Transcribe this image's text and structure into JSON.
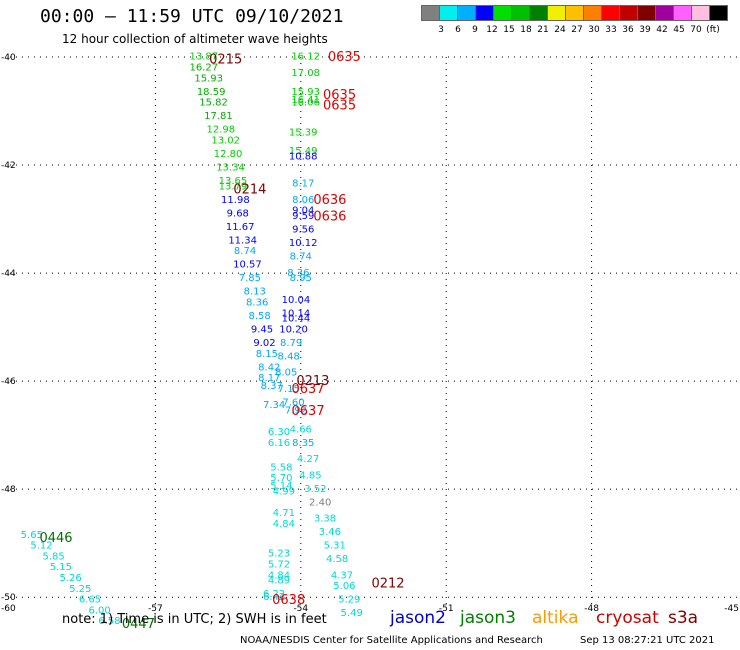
{
  "header": {
    "title": "00:00 — 11:59 UTC 09/10/2021",
    "subtitle": "12 hour collection of altimeter wave heights"
  },
  "colorbar": {
    "colors": [
      "#808080",
      "#00f0f0",
      "#00b0ff",
      "#0000ff",
      "#00e000",
      "#00c000",
      "#008000",
      "#f0f000",
      "#ffc000",
      "#ff8000",
      "#ff0000",
      "#c00000",
      "#800000",
      "#a000a0",
      "#ff60ff",
      "#ffc0e0",
      "#000000"
    ],
    "labels": [
      "3",
      "6",
      "9",
      "12",
      "15",
      "18",
      "21",
      "24",
      "27",
      "30",
      "33",
      "36",
      "39",
      "42",
      "45",
      "70",
      "(ft)"
    ]
  },
  "note": "note:  1) Time is in UTC; 2) SWH is in feet",
  "legend": [
    {
      "name": "jason2",
      "color": "#0000cc"
    },
    {
      "name": "jason3",
      "color": "#008000"
    },
    {
      "name": "altika",
      "color": "#ff9900"
    },
    {
      "name": "cryosat",
      "color": "#cc0000"
    },
    {
      "name": "s3a",
      "color": "#800000"
    }
  ],
  "footer": {
    "left": "NOAA/NESDIS Center for Satellite Applications and Research",
    "right": "Sep 13 08:27:21 UTC 2021"
  },
  "chart_data": {
    "type": "scatter",
    "x_ticks": [
      -57,
      -54,
      -51,
      -48
    ],
    "x_labels": [
      "-57",
      "-54",
      "-51",
      "-48"
    ],
    "y_ticks": [
      -40,
      -42,
      -44,
      -46,
      -48,
      -50
    ],
    "y_labels": [
      "-40",
      "-42",
      "-44",
      "-46",
      "-48",
      "-50"
    ],
    "corner_labels": {
      "bottom_left": "-60",
      "bottom_right": "-45"
    },
    "xlim": [
      -60,
      -45
    ],
    "ylim": [
      -50.2,
      -40
    ],
    "grid": true,
    "point_colors": {
      "c3": "#808080",
      "c6": "#00d8d8",
      "c9": "#00a8ff",
      "c12": "#0000ff",
      "c15": "#00d000",
      "c18": "#00b000",
      "c21": "#008000"
    },
    "time_colors": {
      "cryosat": "#e00000",
      "s3a": "#800000",
      "jason3": "#007000"
    },
    "points": [
      {
        "lon": -56.0,
        "lat": -40.05,
        "v": "13.87",
        "c": "c15"
      },
      {
        "lon": -56.0,
        "lat": -40.25,
        "v": "16.27",
        "c": "c18"
      },
      {
        "lon": -55.9,
        "lat": -40.45,
        "v": "15.93",
        "c": "c18"
      },
      {
        "lon": -55.85,
        "lat": -40.7,
        "v": "18.59",
        "c": "c18"
      },
      {
        "lon": -55.8,
        "lat": -40.9,
        "v": "15.82",
        "c": "c18"
      },
      {
        "lon": -55.7,
        "lat": -41.15,
        "v": "17.81",
        "c": "c18"
      },
      {
        "lon": -55.65,
        "lat": -41.4,
        "v": "12.98",
        "c": "c15"
      },
      {
        "lon": -55.55,
        "lat": -41.6,
        "v": "13.02",
        "c": "c15"
      },
      {
        "lon": -55.5,
        "lat": -41.85,
        "v": "12.80",
        "c": "c15"
      },
      {
        "lon": -55.45,
        "lat": -42.1,
        "v": "13.34",
        "c": "c15"
      },
      {
        "lon": -55.4,
        "lat": -42.35,
        "v": "13.65",
        "c": "c15"
      },
      {
        "lon": -55.4,
        "lat": -42.45,
        "v": "13.79",
        "c": "c15"
      },
      {
        "lon": -55.35,
        "lat": -42.7,
        "v": "11.98",
        "c": "c12"
      },
      {
        "lon": -55.3,
        "lat": -42.95,
        "v": "9.68",
        "c": "c12"
      },
      {
        "lon": -55.25,
        "lat": -43.2,
        "v": "11.67",
        "c": "c12"
      },
      {
        "lon": -55.2,
        "lat": -43.45,
        "v": "11.34",
        "c": "c12"
      },
      {
        "lon": -55.15,
        "lat": -43.65,
        "v": "8.74",
        "c": "c9"
      },
      {
        "lon": -55.1,
        "lat": -43.9,
        "v": "10.57",
        "c": "c12"
      },
      {
        "lon": -55.05,
        "lat": -44.15,
        "v": "7.85",
        "c": "c9"
      },
      {
        "lon": -54.95,
        "lat": -44.4,
        "v": "8.13",
        "c": "c9"
      },
      {
        "lon": -54.9,
        "lat": -44.6,
        "v": "8.36",
        "c": "c9"
      },
      {
        "lon": -54.85,
        "lat": -44.85,
        "v": "8.58",
        "c": "c9"
      },
      {
        "lon": -54.8,
        "lat": -45.1,
        "v": "9.45",
        "c": "c12"
      },
      {
        "lon": -54.75,
        "lat": -45.35,
        "v": "9.02",
        "c": "c12"
      },
      {
        "lon": -54.7,
        "lat": -45.55,
        "v": "8.15",
        "c": "c9"
      },
      {
        "lon": -54.65,
        "lat": -45.8,
        "v": "8.42",
        "c": "c9"
      },
      {
        "lon": -54.65,
        "lat": -46.0,
        "v": "8.17",
        "c": "c9"
      },
      {
        "lon": -54.6,
        "lat": -46.15,
        "v": "8.37",
        "c": "c9"
      },
      {
        "lon": -54.55,
        "lat": -46.5,
        "v": "7.34",
        "c": "c9"
      },
      {
        "lon": -54.45,
        "lat": -47.0,
        "v": "6.30",
        "c": "c6"
      },
      {
        "lon": -54.45,
        "lat": -47.2,
        "v": "6.16",
        "c": "c6"
      },
      {
        "lon": -54.4,
        "lat": -47.65,
        "v": "5.58",
        "c": "c6"
      },
      {
        "lon": -54.4,
        "lat": -47.85,
        "v": "5.70",
        "c": "c6"
      },
      {
        "lon": -54.4,
        "lat": -48.0,
        "v": "5.14",
        "c": "c6"
      },
      {
        "lon": -54.35,
        "lat": -48.1,
        "v": "4.99",
        "c": "c6"
      },
      {
        "lon": -54.35,
        "lat": -48.5,
        "v": "4.71",
        "c": "c6"
      },
      {
        "lon": -54.35,
        "lat": -48.7,
        "v": "4.84",
        "c": "c6"
      },
      {
        "lon": -54.45,
        "lat": -49.25,
        "v": "5.23",
        "c": "c6"
      },
      {
        "lon": -54.45,
        "lat": -49.45,
        "v": "5.72",
        "c": "c6"
      },
      {
        "lon": -54.45,
        "lat": -49.65,
        "v": "4.84",
        "c": "c6"
      },
      {
        "lon": -54.45,
        "lat": -49.75,
        "v": "4.89",
        "c": "c6"
      },
      {
        "lon": -54.55,
        "lat": -50.0,
        "v": "6.22",
        "c": "c6"
      },
      {
        "lon": -54.55,
        "lat": -50.05,
        "v": "6.42",
        "c": "c6"
      },
      {
        "lon": -53.9,
        "lat": -40.05,
        "v": "16.12",
        "c": "c15"
      },
      {
        "lon": -53.9,
        "lat": -40.35,
        "v": "17.08",
        "c": "c15"
      },
      {
        "lon": -53.9,
        "lat": -40.7,
        "v": "15.93",
        "c": "c15"
      },
      {
        "lon": -53.9,
        "lat": -40.85,
        "v": "16.41",
        "c": "c15"
      },
      {
        "lon": -53.9,
        "lat": -40.9,
        "v": "16.06",
        "c": "c15"
      },
      {
        "lon": -53.95,
        "lat": -41.45,
        "v": "15.39",
        "c": "c15"
      },
      {
        "lon": -53.95,
        "lat": -41.8,
        "v": "15.49",
        "c": "c15"
      },
      {
        "lon": -53.95,
        "lat": -41.9,
        "v": "10.88",
        "c": "c12"
      },
      {
        "lon": -53.95,
        "lat": -42.4,
        "v": "8.17",
        "c": "c9"
      },
      {
        "lon": -53.95,
        "lat": -42.7,
        "v": "8.06",
        "c": "c9"
      },
      {
        "lon": -53.95,
        "lat": -42.9,
        "v": "9.04",
        "c": "c12"
      },
      {
        "lon": -53.95,
        "lat": -43.0,
        "v": "9.59",
        "c": "c12"
      },
      {
        "lon": -53.95,
        "lat": -43.25,
        "v": "9.56",
        "c": "c12"
      },
      {
        "lon": -53.95,
        "lat": -43.5,
        "v": "10.12",
        "c": "c12"
      },
      {
        "lon": -54.0,
        "lat": -43.75,
        "v": "8.74",
        "c": "c9"
      },
      {
        "lon": -54.05,
        "lat": -44.05,
        "v": "8.36",
        "c": "c9"
      },
      {
        "lon": -54.0,
        "lat": -44.15,
        "v": "8.95",
        "c": "c9"
      },
      {
        "lon": -54.1,
        "lat": -44.55,
        "v": "10.04",
        "c": "c12"
      },
      {
        "lon": -54.1,
        "lat": -44.8,
        "v": "10.14",
        "c": "c12"
      },
      {
        "lon": -54.1,
        "lat": -44.9,
        "v": "10.44",
        "c": "c12"
      },
      {
        "lon": -54.15,
        "lat": -45.1,
        "v": "10.20",
        "c": "c12"
      },
      {
        "lon": -54.2,
        "lat": -45.35,
        "v": "8.79",
        "c": "c9"
      },
      {
        "lon": -54.25,
        "lat": -45.6,
        "v": "8.48",
        "c": "c9"
      },
      {
        "lon": -54.3,
        "lat": -45.9,
        "v": "8.05",
        "c": "c9"
      },
      {
        "lon": -54.25,
        "lat": -46.2,
        "v": "7.15",
        "c": "c9"
      },
      {
        "lon": -54.15,
        "lat": -46.45,
        "v": "7.60",
        "c": "c9"
      },
      {
        "lon": -54.1,
        "lat": -46.6,
        "v": "7.92",
        "c": "c9"
      },
      {
        "lon": -54.0,
        "lat": -46.95,
        "v": "4.66",
        "c": "c6"
      },
      {
        "lon": -53.95,
        "lat": -47.2,
        "v": "8.35",
        "c": "c9"
      },
      {
        "lon": -53.85,
        "lat": -47.5,
        "v": "4.27",
        "c": "c6"
      },
      {
        "lon": -53.8,
        "lat": -47.8,
        "v": "4.85",
        "c": "c6"
      },
      {
        "lon": -53.7,
        "lat": -48.05,
        "v": "3.52",
        "c": "c6"
      },
      {
        "lon": -53.6,
        "lat": -48.3,
        "v": "2.40",
        "c": "c3"
      },
      {
        "lon": -53.5,
        "lat": -48.6,
        "v": "3.38",
        "c": "c6"
      },
      {
        "lon": -53.4,
        "lat": -48.85,
        "v": "3.46",
        "c": "c6"
      },
      {
        "lon": -53.3,
        "lat": -49.1,
        "v": "5.31",
        "c": "c6"
      },
      {
        "lon": -53.25,
        "lat": -49.35,
        "v": "4.58",
        "c": "c6"
      },
      {
        "lon": -53.15,
        "lat": -49.65,
        "v": "4.37",
        "c": "c6"
      },
      {
        "lon": -53.1,
        "lat": -49.85,
        "v": "5.06",
        "c": "c6"
      },
      {
        "lon": -53.0,
        "lat": -50.1,
        "v": "5.29",
        "c": "c6"
      },
      {
        "lon": -52.95,
        "lat": -50.35,
        "v": "5.49",
        "c": "c6"
      },
      {
        "lon": -59.55,
        "lat": -48.9,
        "v": "5.65",
        "c": "c6"
      },
      {
        "lon": -59.35,
        "lat": -49.1,
        "v": "5.12",
        "c": "c6"
      },
      {
        "lon": -59.1,
        "lat": -49.3,
        "v": "5.85",
        "c": "c6"
      },
      {
        "lon": -58.95,
        "lat": -49.5,
        "v": "5.15",
        "c": "c6"
      },
      {
        "lon": -58.75,
        "lat": -49.7,
        "v": "5.26",
        "c": "c6"
      },
      {
        "lon": -58.55,
        "lat": -49.9,
        "v": "5.25",
        "c": "c6"
      },
      {
        "lon": -58.35,
        "lat": -50.1,
        "v": "6.65",
        "c": "c6"
      },
      {
        "lon": -58.15,
        "lat": -50.3,
        "v": "6.00",
        "c": "c6"
      },
      {
        "lon": -57.95,
        "lat": -50.5,
        "v": "6.58",
        "c": "c6"
      }
    ],
    "times": [
      {
        "lon": -55.55,
        "lat": -40.05,
        "t": "0215",
        "c": "s3a"
      },
      {
        "lon": -53.1,
        "lat": -40.0,
        "t": "0635",
        "c": "cryosat"
      },
      {
        "lon": -53.2,
        "lat": -40.7,
        "t": "0635",
        "c": "cryosat"
      },
      {
        "lon": -53.2,
        "lat": -40.9,
        "t": "0635",
        "c": "cryosat"
      },
      {
        "lon": -55.05,
        "lat": -42.45,
        "t": "0214",
        "c": "s3a"
      },
      {
        "lon": -53.4,
        "lat": -42.65,
        "t": "0636",
        "c": "cryosat"
      },
      {
        "lon": -53.4,
        "lat": -42.95,
        "t": "0636",
        "c": "cryosat"
      },
      {
        "lon": -53.75,
        "lat": -46.0,
        "t": "0213",
        "c": "s3a"
      },
      {
        "lon": -53.85,
        "lat": -46.15,
        "t": "0637",
        "c": "cryosat"
      },
      {
        "lon": -53.85,
        "lat": -46.55,
        "t": "0637",
        "c": "cryosat"
      },
      {
        "lon": -59.05,
        "lat": -48.9,
        "t": "0446",
        "c": "jason3"
      },
      {
        "lon": -52.2,
        "lat": -49.75,
        "t": "0212",
        "c": "s3a"
      },
      {
        "lon": -54.25,
        "lat": -50.05,
        "t": "0638",
        "c": "cryosat"
      },
      {
        "lon": -57.35,
        "lat": -50.5,
        "t": "0447",
        "c": "jason3"
      }
    ]
  }
}
